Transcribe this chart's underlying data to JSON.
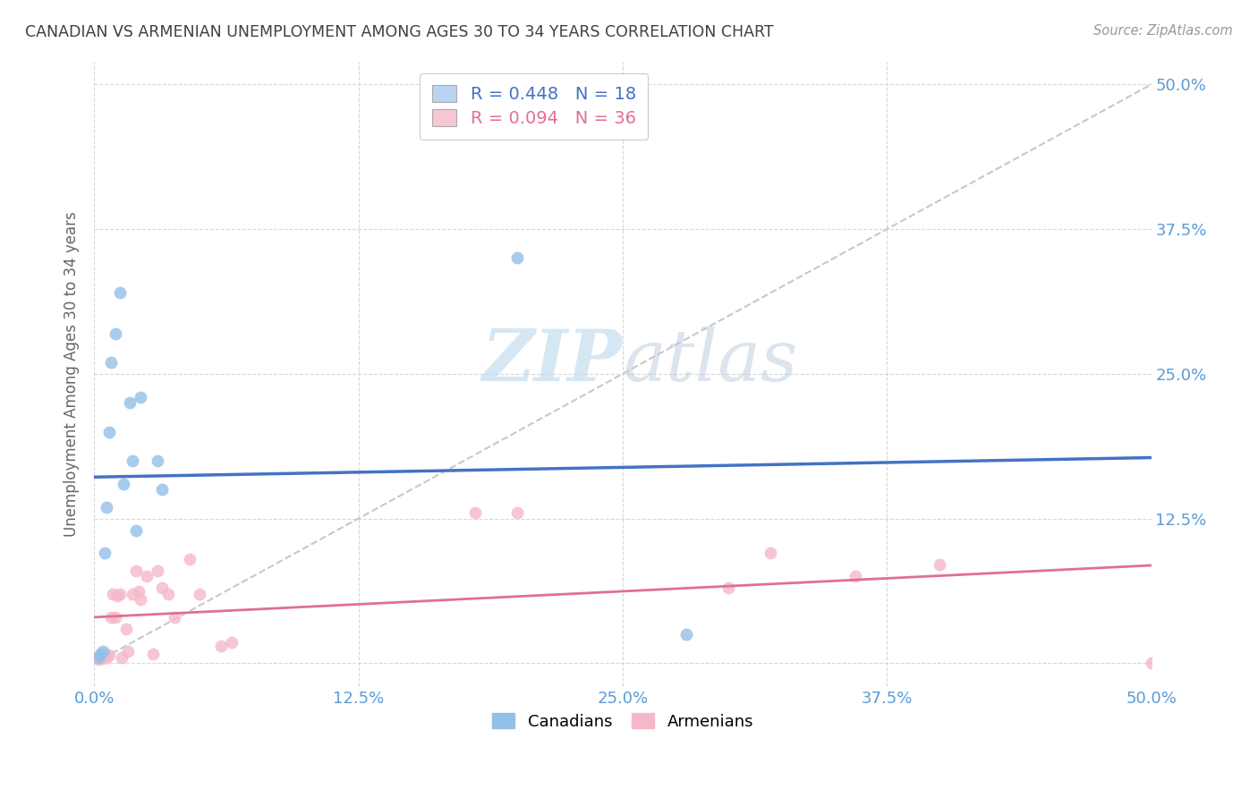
{
  "title": "CANADIAN VS ARMENIAN UNEMPLOYMENT AMONG AGES 30 TO 34 YEARS CORRELATION CHART",
  "source": "Source: ZipAtlas.com",
  "ylabel": "Unemployment Among Ages 30 to 34 years",
  "xlim": [
    0.0,
    0.5
  ],
  "ylim": [
    -0.02,
    0.52
  ],
  "xticks": [
    0.0,
    0.125,
    0.25,
    0.375,
    0.5
  ],
  "xticklabels": [
    "0.0%",
    "12.5%",
    "25.0%",
    "37.5%",
    "50.0%"
  ],
  "yticks": [
    0.0,
    0.125,
    0.25,
    0.375,
    0.5
  ],
  "yticklabels": [
    "",
    "12.5%",
    "25.0%",
    "37.5%",
    "50.0%"
  ],
  "canadian_x": [
    0.002,
    0.003,
    0.004,
    0.005,
    0.006,
    0.007,
    0.008,
    0.01,
    0.012,
    0.014,
    0.017,
    0.018,
    0.02,
    0.022,
    0.03,
    0.032,
    0.2,
    0.28
  ],
  "canadian_y": [
    0.005,
    0.008,
    0.01,
    0.095,
    0.135,
    0.2,
    0.26,
    0.285,
    0.32,
    0.155,
    0.225,
    0.175,
    0.115,
    0.23,
    0.175,
    0.15,
    0.35,
    0.025
  ],
  "armenian_x": [
    0.002,
    0.003,
    0.004,
    0.005,
    0.005,
    0.006,
    0.007,
    0.008,
    0.009,
    0.01,
    0.011,
    0.012,
    0.013,
    0.015,
    0.016,
    0.018,
    0.02,
    0.021,
    0.022,
    0.025,
    0.028,
    0.03,
    0.032,
    0.035,
    0.038,
    0.045,
    0.05,
    0.06,
    0.065,
    0.18,
    0.2,
    0.3,
    0.32,
    0.36,
    0.4,
    0.5
  ],
  "armenian_y": [
    0.003,
    0.005,
    0.004,
    0.006,
    0.008,
    0.005,
    0.007,
    0.04,
    0.06,
    0.04,
    0.058,
    0.06,
    0.005,
    0.03,
    0.01,
    0.06,
    0.08,
    0.062,
    0.055,
    0.075,
    0.008,
    0.08,
    0.065,
    0.06,
    0.04,
    0.09,
    0.06,
    0.015,
    0.018,
    0.13,
    0.13,
    0.065,
    0.095,
    0.075,
    0.085,
    0.0
  ],
  "canadian_color": "#92c0e8",
  "armenian_color": "#f5b8c8",
  "canadian_line_color": "#4472c4",
  "armenian_line_color": "#e07090",
  "diagonal_color": "#c8c8c8",
  "R_canadian": 0.448,
  "N_canadian": 18,
  "R_armenian": 0.094,
  "N_armenian": 36,
  "marker_size": 100,
  "bg_color": "#ffffff",
  "grid_color": "#d8d8d8",
  "title_color": "#404040",
  "axis_label_color": "#666666",
  "tick_color": "#5b9bd5",
  "legend_box_canadian": "#b8d4f0",
  "legend_box_armenian": "#f5c8d4"
}
